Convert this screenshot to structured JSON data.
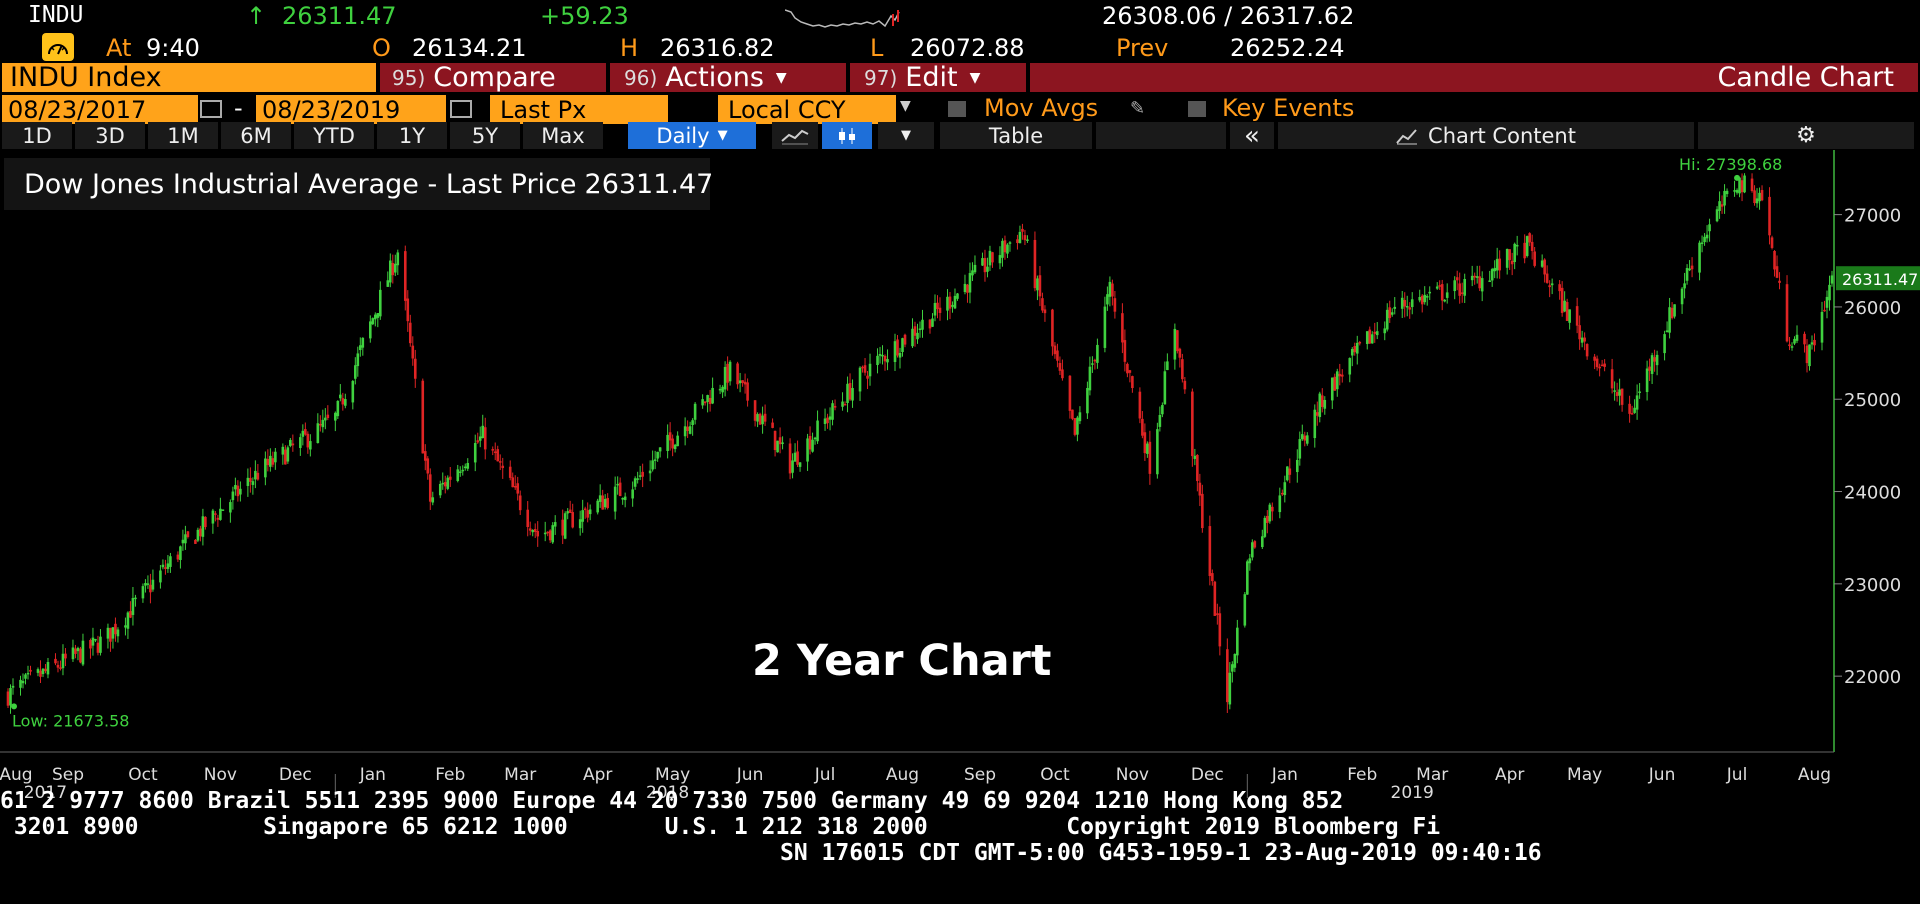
{
  "quote": {
    "ticker": "INDU",
    "arrow": "↑",
    "last": "26311.47",
    "change": "+59.23",
    "bid_ask": "26308.06 / 26317.62",
    "at_label": "At",
    "time": "9:40",
    "open_label": "O",
    "open": "26134.21",
    "high_label": "H",
    "high": "26316.82",
    "low_label": "L",
    "low": "26072.88",
    "prev_label": "Prev",
    "prev": "26252.24"
  },
  "menubar": {
    "security": "INDU Index",
    "compare_num": "95)",
    "compare": "Compare",
    "actions_num": "96)",
    "actions": "Actions",
    "edit_num": "97)",
    "edit": "Edit",
    "title": "Candle Chart"
  },
  "controls": {
    "start_date": "08/23/2017",
    "dash": "-",
    "end_date": "08/23/2019",
    "price_field": "Last Px",
    "currency": "Local CCY",
    "mov_avgs": "Mov Avgs",
    "key_events": "Key Events"
  },
  "toolbar": {
    "ranges": [
      "1D",
      "3D",
      "1M",
      "6M",
      "YTD",
      "1Y",
      "5Y",
      "Max"
    ],
    "period": "Daily",
    "table": "Table",
    "collapse": "«",
    "chart_content": "Chart Content"
  },
  "legend": {
    "label": "Dow Jones Industrial Average - Last Price",
    "value": "26311.47",
    "color": "#3fd13f"
  },
  "overlay_title": "2 Year Chart",
  "footer": {
    "line1": "61 2 9777 8600 Brazil 5511 2395 9000 Europe 44 20 7330 7500 Germany 49 69 9204 1210 Hong Kong 852",
    "line2": " 3201 8900         Singapore 65 6212 1000       U.S. 1 212 318 2000          Copyright 2019 Bloomberg Fi",
    "line3": "SN 176015 CDT  GMT-5:00 G453-1959-1 23-Aug-2019 09:40:16"
  },
  "colors": {
    "up": "#3fd13f",
    "down": "#e02424",
    "accent": "#ffa31a",
    "menu": "#8c1520"
  },
  "chart_data": {
    "type": "candlestick",
    "title": "Dow Jones Industrial Average - Last Price",
    "ylim": [
      21200,
      27700
    ],
    "yticks": [
      22000,
      23000,
      24000,
      25000,
      26000,
      27000
    ],
    "ytick_labels": [
      "22000",
      "23000",
      "24000",
      "25000",
      "26000",
      "27000"
    ],
    "last_price_label": "26311.47",
    "hi_label": "Hi: 27398.68",
    "low_label": "Low: 21673.58",
    "x_months": [
      "Aug",
      "Sep",
      "Oct",
      "Nov",
      "Dec",
      "Jan",
      "Feb",
      "Mar",
      "Apr",
      "May",
      "Jun",
      "Jul",
      "Aug",
      "Sep",
      "Oct",
      "Nov",
      "Dec",
      "Jan",
      "Feb",
      "Mar",
      "Apr",
      "May",
      "Jun",
      "Jul",
      "Aug"
    ],
    "x_years": [
      "2017",
      "2018",
      "2019"
    ],
    "anchors": [
      {
        "date": "2017-08-23",
        "close": 21800
      },
      {
        "date": "2017-09-01",
        "close": 21950
      },
      {
        "date": "2017-10-01",
        "close": 22400
      },
      {
        "date": "2017-11-01",
        "close": 23400
      },
      {
        "date": "2017-12-01",
        "close": 24200
      },
      {
        "date": "2018-01-01",
        "close": 24800
      },
      {
        "date": "2018-01-26",
        "close": 26600
      },
      {
        "date": "2018-02-08",
        "close": 23900
      },
      {
        "date": "2018-03-01",
        "close": 24600
      },
      {
        "date": "2018-03-23",
        "close": 23530
      },
      {
        "date": "2018-04-02",
        "close": 23640
      },
      {
        "date": "2018-05-01",
        "close": 24100
      },
      {
        "date": "2018-06-08",
        "close": 25300
      },
      {
        "date": "2018-07-02",
        "close": 24300
      },
      {
        "date": "2018-08-01",
        "close": 25300
      },
      {
        "date": "2018-09-01",
        "close": 26000
      },
      {
        "date": "2018-10-03",
        "close": 26830
      },
      {
        "date": "2018-10-24",
        "close": 24600
      },
      {
        "date": "2018-11-07",
        "close": 26180
      },
      {
        "date": "2018-11-23",
        "close": 24300
      },
      {
        "date": "2018-12-03",
        "close": 25800
      },
      {
        "date": "2018-12-24",
        "close": 21790
      },
      {
        "date": "2019-01-02",
        "close": 23340
      },
      {
        "date": "2019-02-01",
        "close": 25060
      },
      {
        "date": "2019-03-01",
        "close": 26000
      },
      {
        "date": "2019-04-01",
        "close": 26250
      },
      {
        "date": "2019-04-23",
        "close": 26660
      },
      {
        "date": "2019-06-03",
        "close": 24820
      },
      {
        "date": "2019-07-01",
        "close": 26700
      },
      {
        "date": "2019-07-16",
        "close": 27360
      },
      {
        "date": "2019-07-26",
        "close": 27190
      },
      {
        "date": "2019-08-05",
        "close": 25720
      },
      {
        "date": "2019-08-14",
        "close": 25480
      },
      {
        "date": "2019-08-23",
        "close": 26311
      }
    ]
  }
}
